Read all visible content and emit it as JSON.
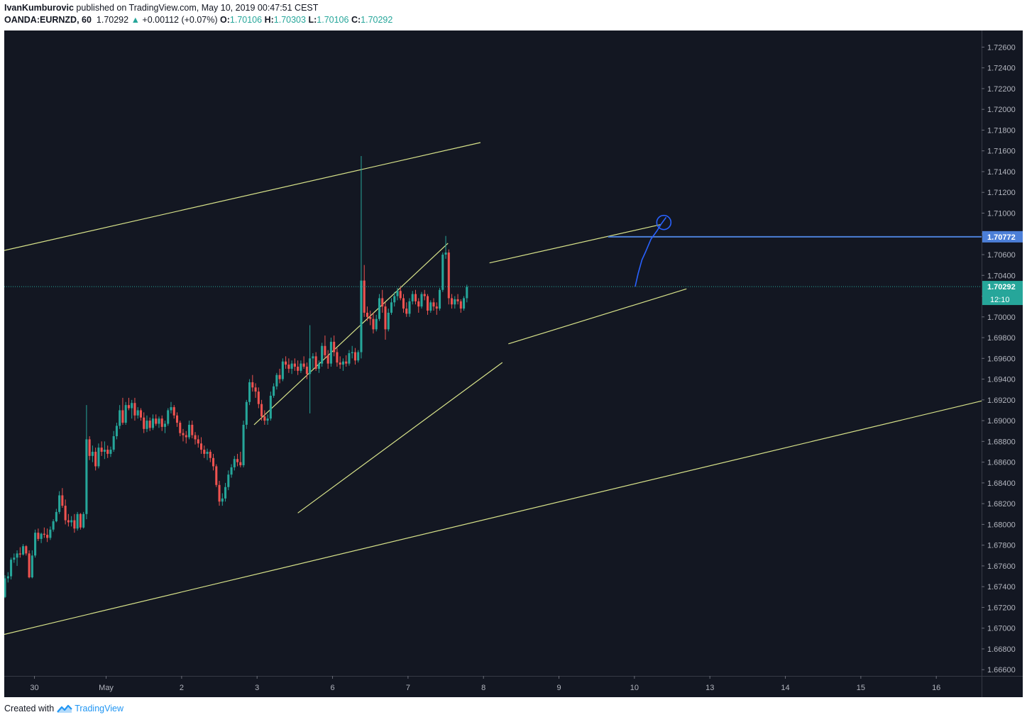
{
  "header": {
    "author": "IvanKumburovic",
    "published_text": "published on TradingView.com, May 10, 2019 00:47:51 CEST",
    "symbol": "OANDA:EURNZD, 60",
    "last": "1.70292",
    "change": "+0.00112 (+0.07%)",
    "o_label": "O:",
    "o_value": "1.70106",
    "h_label": "H:",
    "h_value": "1.70303",
    "l_label": "L:",
    "l_value": "1.70106",
    "c_label": "C:",
    "c_value": "1.70292"
  },
  "footer": {
    "created_with": "Created with",
    "brand": "TradingView"
  },
  "colors": {
    "background": "#131722",
    "up": "#26a69a",
    "down": "#ef5350",
    "trendline": "#d8e38a",
    "drawing": "#2962ff",
    "price_tag": "#26a69a",
    "level_tag": "#4c7fd8",
    "axis_text": "#b2b5be"
  },
  "chart_data": {
    "type": "candlestick",
    "symbol": "OANDA:EURNZD",
    "interval": "60",
    "y_axis": {
      "min": 1.6654,
      "max": 1.7276,
      "ticks": [
        "1.72600",
        "1.72400",
        "1.72200",
        "1.72000",
        "1.71800",
        "1.71600",
        "1.71400",
        "1.71200",
        "1.71000",
        "1.70800",
        "1.70600",
        "1.70400",
        "1.70200",
        "1.70000",
        "1.69800",
        "1.69600",
        "1.69400",
        "1.69200",
        "1.69000",
        "1.68800",
        "1.68600",
        "1.68400",
        "1.68200",
        "1.68000",
        "1.67800",
        "1.67600",
        "1.67400",
        "1.67200",
        "1.67000",
        "1.66800",
        "1.66600"
      ]
    },
    "x_axis": {
      "labels": [
        {
          "text": "30",
          "day": -0.95
        },
        {
          "text": "May",
          "day": 0
        },
        {
          "text": "2",
          "day": 1
        },
        {
          "text": "3",
          "day": 2
        },
        {
          "text": "6",
          "day": 3
        },
        {
          "text": "7",
          "day": 4
        },
        {
          "text": "8",
          "day": 5
        },
        {
          "text": "9",
          "day": 6
        },
        {
          "text": "10",
          "day": 7
        },
        {
          "text": "13",
          "day": 8
        },
        {
          "text": "14",
          "day": 9
        },
        {
          "text": "15",
          "day": 10
        },
        {
          "text": "16",
          "day": 11
        }
      ],
      "day_range": [
        -1.35,
        11.6
      ]
    },
    "current_price": {
      "value": 1.70292,
      "label": "1.70292",
      "countdown": "12:10"
    },
    "horizontal_level": {
      "value": 1.70772,
      "label": "1.70772",
      "from_day": 6.65
    },
    "trendlines": [
      {
        "name": "outer-channel-upper",
        "p1": [
          -1.35,
          1.7064
        ],
        "p2": [
          4.96,
          1.7168
        ]
      },
      {
        "name": "outer-channel-lower",
        "p1": [
          -1.35,
          1.6694
        ],
        "p2": [
          11.6,
          1.6919
        ]
      },
      {
        "name": "inner-channel-upper",
        "p1": [
          1.96,
          1.6896
        ],
        "p2": [
          4.53,
          1.7071
        ]
      },
      {
        "name": "inner-channel-lower",
        "p1": [
          2.54,
          1.6811
        ],
        "p2": [
          5.25,
          1.6956
        ]
      },
      {
        "name": "flag-upper",
        "p1": [
          5.08,
          1.7052
        ],
        "p2": [
          7.35,
          1.7089
        ]
      },
      {
        "name": "flag-lower",
        "p1": [
          5.33,
          1.6974
        ],
        "p2": [
          7.69,
          1.7027
        ]
      }
    ],
    "projection": [
      [
        7.01,
        1.70292
      ],
      [
        7.05,
        1.7042
      ],
      [
        7.1,
        1.7055
      ],
      [
        7.15,
        1.7063
      ],
      [
        7.22,
        1.7075
      ],
      [
        7.3,
        1.7083
      ],
      [
        7.35,
        1.7089
      ],
      [
        7.42,
        1.7096
      ]
    ],
    "projection_target": {
      "day": 7.39,
      "price": 1.7091
    },
    "candles": [
      [
        -1.34,
        1.673,
        1.6751,
        1.6729,
        1.6748
      ],
      [
        -1.3,
        1.6748,
        1.6754,
        1.6744,
        1.675
      ],
      [
        -1.26,
        1.675,
        1.6768,
        1.6747,
        1.6766
      ],
      [
        -1.22,
        1.6766,
        1.6772,
        1.6763,
        1.6768
      ],
      [
        -1.18,
        1.6768,
        1.6775,
        1.676,
        1.6772
      ],
      [
        -1.14,
        1.6772,
        1.6778,
        1.6768,
        1.6771
      ],
      [
        -1.1,
        1.6771,
        1.6781,
        1.677,
        1.6779
      ],
      [
        -1.06,
        1.6779,
        1.678,
        1.677,
        1.6772
      ],
      [
        -1.02,
        1.6772,
        1.6775,
        1.6748,
        1.6749
      ],
      [
        -0.98,
        1.6749,
        1.6775,
        1.6748,
        1.677
      ],
      [
        -0.94,
        1.677,
        1.6795,
        1.6768,
        1.6792
      ],
      [
        -0.9,
        1.6792,
        1.6796,
        1.6784,
        1.6786
      ],
      [
        -0.86,
        1.6786,
        1.6792,
        1.6782,
        1.6791
      ],
      [
        -0.82,
        1.6791,
        1.6797,
        1.6787,
        1.679
      ],
      [
        -0.78,
        1.679,
        1.6796,
        1.6783,
        1.6787
      ],
      [
        -0.74,
        1.6787,
        1.6798,
        1.6785,
        1.6795
      ],
      [
        -0.7,
        1.6795,
        1.6805,
        1.6793,
        1.6803
      ],
      [
        -0.66,
        1.6803,
        1.6815,
        1.6802,
        1.6812
      ],
      [
        -0.62,
        1.6812,
        1.6832,
        1.681,
        1.6828
      ],
      [
        -0.58,
        1.6828,
        1.6835,
        1.6816,
        1.6818
      ],
      [
        -0.54,
        1.6818,
        1.6824,
        1.68,
        1.6804
      ],
      [
        -0.5,
        1.6804,
        1.681,
        1.6798,
        1.6802
      ],
      [
        -0.46,
        1.6802,
        1.6808,
        1.6798,
        1.6804
      ],
      [
        -0.42,
        1.6804,
        1.681,
        1.6792,
        1.6796
      ],
      [
        -0.38,
        1.6796,
        1.6812,
        1.6794,
        1.681
      ],
      [
        -0.34,
        1.681,
        1.6811,
        1.6795,
        1.6797
      ],
      [
        -0.3,
        1.6797,
        1.6812,
        1.6796,
        1.681
      ],
      [
        -0.26,
        1.681,
        1.6915,
        1.6805,
        1.6882
      ],
      [
        -0.22,
        1.6882,
        1.6885,
        1.6862,
        1.6866
      ],
      [
        -0.18,
        1.6866,
        1.6876,
        1.686,
        1.687
      ],
      [
        -0.14,
        1.687,
        1.6874,
        1.6852,
        1.6856
      ],
      [
        -0.1,
        1.6856,
        1.6878,
        1.6854,
        1.6874
      ],
      [
        -0.06,
        1.6874,
        1.688,
        1.6866,
        1.687
      ],
      [
        -0.02,
        1.687,
        1.688,
        1.6863,
        1.6872
      ],
      [
        0.02,
        1.6872,
        1.6876,
        1.6864,
        1.6868
      ],
      [
        0.06,
        1.6868,
        1.6875,
        1.6865,
        1.6872
      ],
      [
        0.1,
        1.6872,
        1.689,
        1.687,
        1.6885
      ],
      [
        0.14,
        1.6885,
        1.6898,
        1.6882,
        1.6895
      ],
      [
        0.18,
        1.6895,
        1.6915,
        1.6892,
        1.691
      ],
      [
        0.22,
        1.691,
        1.6922,
        1.6896,
        1.6898
      ],
      [
        0.26,
        1.6898,
        1.6918,
        1.6896,
        1.6915
      ],
      [
        0.3,
        1.6915,
        1.6922,
        1.691,
        1.6912
      ],
      [
        0.34,
        1.6912,
        1.692,
        1.6902,
        1.6917
      ],
      [
        0.38,
        1.6917,
        1.6922,
        1.69,
        1.6905
      ],
      [
        0.42,
        1.6905,
        1.6913,
        1.6902,
        1.691
      ],
      [
        0.46,
        1.691,
        1.6912,
        1.69,
        1.6903
      ],
      [
        0.5,
        1.6903,
        1.6908,
        1.6888,
        1.6892
      ],
      [
        0.54,
        1.6892,
        1.6905,
        1.6889,
        1.69
      ],
      [
        0.58,
        1.69,
        1.6903,
        1.689,
        1.6893
      ],
      [
        0.62,
        1.6893,
        1.6906,
        1.6891,
        1.6902
      ],
      [
        0.66,
        1.6902,
        1.6906,
        1.6895,
        1.6897
      ],
      [
        0.7,
        1.6897,
        1.6904,
        1.6893,
        1.6902
      ],
      [
        0.74,
        1.6902,
        1.6905,
        1.689,
        1.6894
      ],
      [
        0.78,
        1.6894,
        1.69,
        1.6888,
        1.6897
      ],
      [
        0.82,
        1.6897,
        1.6912,
        1.6895,
        1.691
      ],
      [
        0.86,
        1.691,
        1.6918,
        1.6907,
        1.6913
      ],
      [
        0.9,
        1.6913,
        1.6915,
        1.6902,
        1.6905
      ],
      [
        0.94,
        1.6905,
        1.6908,
        1.6894,
        1.6898
      ],
      [
        0.98,
        1.6898,
        1.69,
        1.6885,
        1.6888
      ],
      [
        1.02,
        1.6888,
        1.6892,
        1.688,
        1.6886
      ],
      [
        1.06,
        1.6886,
        1.689,
        1.6878,
        1.6884
      ],
      [
        1.1,
        1.6884,
        1.69,
        1.6882,
        1.6896
      ],
      [
        1.14,
        1.6896,
        1.69,
        1.6883,
        1.6886
      ],
      [
        1.18,
        1.6886,
        1.6889,
        1.6877,
        1.6882
      ],
      [
        1.22,
        1.6882,
        1.6886,
        1.6874,
        1.6878
      ],
      [
        1.26,
        1.6878,
        1.6884,
        1.6868,
        1.6872
      ],
      [
        1.3,
        1.6872,
        1.6876,
        1.6864,
        1.6868
      ],
      [
        1.34,
        1.6868,
        1.6873,
        1.6862,
        1.687
      ],
      [
        1.38,
        1.687,
        1.6872,
        1.686,
        1.6864
      ],
      [
        1.42,
        1.6864,
        1.6868,
        1.6852,
        1.6856
      ],
      [
        1.46,
        1.6856,
        1.6858,
        1.6836,
        1.6838
      ],
      [
        1.5,
        1.6838,
        1.6842,
        1.6818,
        1.6822
      ],
      [
        1.54,
        1.6822,
        1.683,
        1.6818,
        1.6825
      ],
      [
        1.58,
        1.6825,
        1.684,
        1.6822,
        1.6836
      ],
      [
        1.62,
        1.6836,
        1.6852,
        1.6833,
        1.6848
      ],
      [
        1.66,
        1.6848,
        1.6858,
        1.6845,
        1.6855
      ],
      [
        1.7,
        1.6855,
        1.6866,
        1.6852,
        1.6863
      ],
      [
        1.74,
        1.6863,
        1.6868,
        1.6856,
        1.686
      ],
      [
        1.78,
        1.686,
        1.687,
        1.6855,
        1.6857
      ],
      [
        1.82,
        1.6857,
        1.69,
        1.6855,
        1.6896
      ],
      [
        1.86,
        1.6896,
        1.692,
        1.6892,
        1.6918
      ],
      [
        1.9,
        1.6918,
        1.694,
        1.6915,
        1.6937
      ],
      [
        1.94,
        1.6937,
        1.6944,
        1.6928,
        1.6932
      ],
      [
        1.98,
        1.6932,
        1.6936,
        1.6922,
        1.6928
      ],
      [
        2.02,
        1.6928,
        1.6932,
        1.6912,
        1.6916
      ],
      [
        2.06,
        1.6916,
        1.692,
        1.69,
        1.6904
      ],
      [
        2.1,
        1.6904,
        1.691,
        1.6896,
        1.69
      ],
      [
        2.14,
        1.69,
        1.6906,
        1.6896,
        1.6902
      ],
      [
        2.18,
        1.6902,
        1.6928,
        1.69,
        1.6924
      ],
      [
        2.22,
        1.6924,
        1.6936,
        1.6922,
        1.6933
      ],
      [
        2.26,
        1.6933,
        1.6946,
        1.693,
        1.6944
      ],
      [
        2.3,
        1.6944,
        1.695,
        1.6936,
        1.694
      ],
      [
        2.34,
        1.694,
        1.696,
        1.6938,
        1.6957
      ],
      [
        2.38,
        1.6957,
        1.6962,
        1.695,
        1.6954
      ],
      [
        2.42,
        1.6954,
        1.696,
        1.6946,
        1.695
      ],
      [
        2.46,
        1.695,
        1.6958,
        1.6945,
        1.6955
      ],
      [
        2.5,
        1.6955,
        1.696,
        1.6948,
        1.6952
      ],
      [
        2.54,
        1.6952,
        1.6958,
        1.6944,
        1.6948
      ],
      [
        2.58,
        1.6948,
        1.6958,
        1.6946,
        1.6955
      ],
      [
        2.62,
        1.6955,
        1.6962,
        1.695,
        1.6952
      ],
      [
        2.66,
        1.6952,
        1.6956,
        1.694,
        1.6945
      ],
      [
        2.7,
        1.6945,
        1.6992,
        1.6907,
        1.696
      ],
      [
        2.74,
        1.696,
        1.6965,
        1.695,
        1.6962
      ],
      [
        2.78,
        1.6962,
        1.6966,
        1.6948,
        1.695
      ],
      [
        2.82,
        1.695,
        1.6958,
        1.6946,
        1.6955
      ],
      [
        2.86,
        1.6955,
        1.6975,
        1.6952,
        1.6972
      ],
      [
        2.9,
        1.6972,
        1.6982,
        1.696,
        1.6963
      ],
      [
        2.94,
        1.6963,
        1.6968,
        1.695,
        1.6955
      ],
      [
        2.98,
        1.6955,
        1.698,
        1.6952,
        1.6976
      ],
      [
        3.02,
        1.6976,
        1.6982,
        1.6962,
        1.6966
      ],
      [
        3.06,
        1.6966,
        1.697,
        1.6952,
        1.6956
      ],
      [
        3.1,
        1.6956,
        1.6962,
        1.695,
        1.6954
      ],
      [
        3.14,
        1.6954,
        1.696,
        1.6948,
        1.6957
      ],
      [
        3.18,
        1.6957,
        1.6963,
        1.6952,
        1.6955
      ],
      [
        3.22,
        1.6955,
        1.6968,
        1.6953,
        1.6965
      ],
      [
        3.26,
        1.6965,
        1.6972,
        1.696,
        1.6966
      ],
      [
        3.3,
        1.6966,
        1.697,
        1.6954,
        1.6958
      ],
      [
        3.34,
        1.6958,
        1.6968,
        1.6956,
        1.6966
      ],
      [
        3.38,
        1.6966,
        1.7155,
        1.696,
        1.7035
      ],
      [
        3.42,
        1.7035,
        1.705,
        1.7,
        1.7004
      ],
      [
        3.46,
        1.7004,
        1.701,
        1.6996,
        1.7
      ],
      [
        3.5,
        1.7,
        1.7006,
        1.6992,
        1.6998
      ],
      [
        3.54,
        1.6998,
        1.7004,
        1.6984,
        1.6988
      ],
      [
        3.58,
        1.6988,
        1.7002,
        1.6986,
        1.6998
      ],
      [
        3.62,
        1.6998,
        1.7022,
        1.6996,
        1.7018
      ],
      [
        3.66,
        1.7018,
        1.7026,
        1.7004,
        1.701
      ],
      [
        3.7,
        1.701,
        1.7014,
        1.6978,
        1.6988
      ],
      [
        3.74,
        1.6988,
        1.7008,
        1.6986,
        1.7004
      ],
      [
        3.78,
        1.7004,
        1.7018,
        1.7002,
        1.7014
      ],
      [
        3.82,
        1.7014,
        1.7024,
        1.701,
        1.702
      ],
      [
        3.86,
        1.702,
        1.7028,
        1.7016,
        1.7025
      ],
      [
        3.9,
        1.7025,
        1.703,
        1.7016,
        1.7018
      ],
      [
        3.94,
        1.7018,
        1.7022,
        1.7004,
        1.7008
      ],
      [
        3.98,
        1.7008,
        1.7014,
        1.7,
        1.7003
      ],
      [
        4.02,
        1.7003,
        1.7018,
        1.7,
        1.7015
      ],
      [
        4.06,
        1.7015,
        1.7025,
        1.7012,
        1.7022
      ],
      [
        4.1,
        1.7022,
        1.7026,
        1.7012,
        1.7015
      ],
      [
        4.14,
        1.7015,
        1.7018,
        1.7004,
        1.701
      ],
      [
        4.18,
        1.701,
        1.7024,
        1.7008,
        1.7022
      ],
      [
        4.22,
        1.7022,
        1.7026,
        1.7016,
        1.702
      ],
      [
        4.26,
        1.702,
        1.7022,
        1.7002,
        1.7006
      ],
      [
        4.3,
        1.7006,
        1.7016,
        1.7004,
        1.7014
      ],
      [
        4.34,
        1.7014,
        1.7018,
        1.7006,
        1.701
      ],
      [
        4.38,
        1.701,
        1.7014,
        1.7002,
        1.7008
      ],
      [
        4.42,
        1.7008,
        1.7028,
        1.7006,
        1.7026
      ],
      [
        4.46,
        1.7026,
        1.7062,
        1.7024,
        1.706
      ],
      [
        4.5,
        1.706,
        1.7078,
        1.7056,
        1.7062
      ],
      [
        4.54,
        1.7062,
        1.7065,
        1.7012,
        1.7018
      ],
      [
        4.58,
        1.7018,
        1.7022,
        1.7008,
        1.7012
      ],
      [
        4.62,
        1.7012,
        1.702,
        1.7008,
        1.7017
      ],
      [
        4.66,
        1.7017,
        1.7022,
        1.7012,
        1.7015
      ],
      [
        4.7,
        1.7015,
        1.7017,
        1.7004,
        1.7008
      ],
      [
        4.74,
        1.7008,
        1.702,
        1.7006,
        1.7018
      ],
      [
        4.78,
        1.7018,
        1.7031,
        1.7014,
        1.7029
      ]
    ]
  }
}
